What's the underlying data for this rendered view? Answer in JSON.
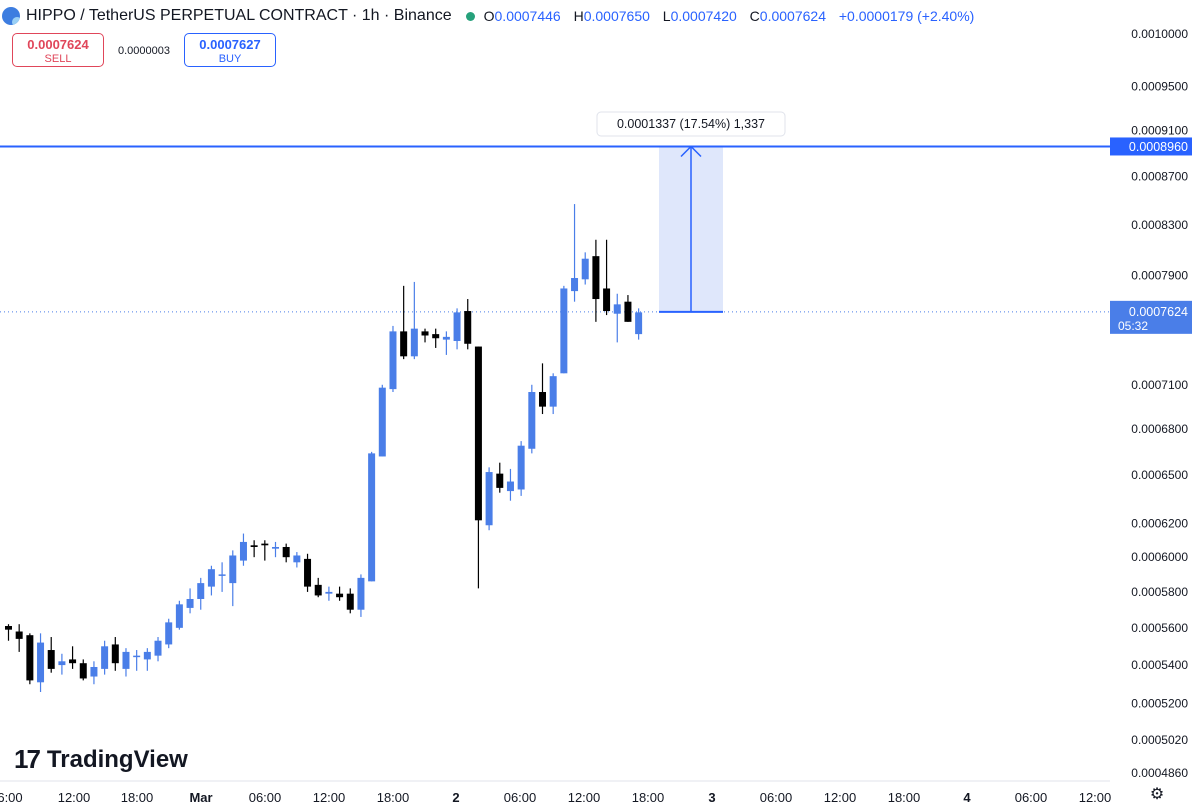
{
  "header": {
    "title": "HIPPO / TetherUS PERPETUAL CONTRACT · 1h · Binance",
    "o_label": "O",
    "o_value": "0.0007446",
    "h_label": "H",
    "h_value": "0.0007650",
    "l_label": "L",
    "l_value": "0.0007420",
    "c_label": "C",
    "c_value": "0.0007624",
    "change": "+0.0000179 (+2.40%)"
  },
  "trade": {
    "sell_price": "0.0007624",
    "sell_label": "SELL",
    "spread": "0.0000003",
    "buy_price": "0.0007627",
    "buy_label": "BUY"
  },
  "brand": {
    "name": "TradingView",
    "mark": "17"
  },
  "icons": {
    "logo": "hippo-coin-icon",
    "status": "market-open-dot-icon",
    "settings": "gear-icon"
  },
  "colors": {
    "up": "#4a7ee8",
    "down": "#000000",
    "accent": "#2962ff",
    "sell": "#e0465a",
    "range_fill": "#dbe4fb"
  },
  "chart_data": {
    "type": "candlestick",
    "y_ticks": [
      "0.0010000",
      "0.0009500",
      "0.0009100",
      "0.0008700",
      "0.0008300",
      "0.0007900",
      "0.0007100",
      "0.0006800",
      "0.0006500",
      "0.0006200",
      "0.0006000",
      "0.0005800",
      "0.0005600",
      "0.0005400",
      "0.0005200",
      "0.0005020",
      "0.0004860"
    ],
    "x_ticks": [
      "6:00",
      "12:00",
      "18:00",
      "Mar",
      "06:00",
      "12:00",
      "18:00",
      "2",
      "06:00",
      "12:00",
      "18:00",
      "3",
      "06:00",
      "12:00",
      "18:00",
      "4",
      "06:00",
      "12:00"
    ],
    "horizontal_line": {
      "value": 0.000896,
      "label": "0.0008960"
    },
    "last_price": {
      "value": 0.0007624,
      "label": "0.0007624",
      "countdown": "05:32"
    },
    "measure": {
      "from": 0.0007624,
      "to": 0.000896,
      "label": "0.0001337 (17.54%) 1,337"
    },
    "candles": [
      {
        "o": 0.000561,
        "h": 0.000562,
        "l": 0.000553,
        "c": 0.000559
      },
      {
        "o": 0.000558,
        "h": 0.000562,
        "l": 0.000547,
        "c": 0.000554
      },
      {
        "o": 0.000556,
        "h": 0.000557,
        "l": 0.00053,
        "c": 0.000532
      },
      {
        "o": 0.000531,
        "h": 0.000557,
        "l": 0.000526,
        "c": 0.000552
      },
      {
        "o": 0.000548,
        "h": 0.000555,
        "l": 0.000536,
        "c": 0.000538
      },
      {
        "o": 0.00054,
        "h": 0.000546,
        "l": 0.000535,
        "c": 0.000542
      },
      {
        "o": 0.000543,
        "h": 0.00055,
        "l": 0.000538,
        "c": 0.000541
      },
      {
        "o": 0.000541,
        "h": 0.000543,
        "l": 0.000532,
        "c": 0.000533
      },
      {
        "o": 0.000534,
        "h": 0.000542,
        "l": 0.00053,
        "c": 0.000539
      },
      {
        "o": 0.000538,
        "h": 0.000553,
        "l": 0.000535,
        "c": 0.00055
      },
      {
        "o": 0.000551,
        "h": 0.000555,
        "l": 0.000537,
        "c": 0.000541
      },
      {
        "o": 0.000538,
        "h": 0.000549,
        "l": 0.000534,
        "c": 0.000547
      },
      {
        "o": 0.000545,
        "h": 0.000548,
        "l": 0.000537,
        "c": 0.000545
      },
      {
        "o": 0.000543,
        "h": 0.000549,
        "l": 0.000537,
        "c": 0.000547
      },
      {
        "o": 0.000545,
        "h": 0.000555,
        "l": 0.000542,
        "c": 0.000553
      },
      {
        "o": 0.000551,
        "h": 0.000565,
        "l": 0.000549,
        "c": 0.000563
      },
      {
        "o": 0.00056,
        "h": 0.000575,
        "l": 0.000559,
        "c": 0.000573
      },
      {
        "o": 0.000571,
        "h": 0.000582,
        "l": 0.000568,
        "c": 0.000576
      },
      {
        "o": 0.000576,
        "h": 0.000588,
        "l": 0.00057,
        "c": 0.000585
      },
      {
        "o": 0.000583,
        "h": 0.000595,
        "l": 0.000578,
        "c": 0.000593
      },
      {
        "o": 0.00059,
        "h": 0.000597,
        "l": 0.00058,
        "c": 0.00059
      },
      {
        "o": 0.000585,
        "h": 0.000604,
        "l": 0.000572,
        "c": 0.000601
      },
      {
        "o": 0.000598,
        "h": 0.000614,
        "l": 0.000595,
        "c": 0.000609
      },
      {
        "o": 0.000607,
        "h": 0.00061,
        "l": 0.0006,
        "c": 0.000606
      },
      {
        "o": 0.000608,
        "h": 0.00061,
        "l": 0.000598,
        "c": 0.000607
      },
      {
        "o": 0.000605,
        "h": 0.000609,
        "l": 0.0006,
        "c": 0.000606
      },
      {
        "o": 0.000606,
        "h": 0.000608,
        "l": 0.000597,
        "c": 0.0006
      },
      {
        "o": 0.000597,
        "h": 0.000603,
        "l": 0.000594,
        "c": 0.000601
      },
      {
        "o": 0.000599,
        "h": 0.000602,
        "l": 0.00058,
        "c": 0.000583
      },
      {
        "o": 0.000584,
        "h": 0.000588,
        "l": 0.000577,
        "c": 0.000578
      },
      {
        "o": 0.000579,
        "h": 0.000583,
        "l": 0.000575,
        "c": 0.00058
      },
      {
        "o": 0.000579,
        "h": 0.000583,
        "l": 0.000575,
        "c": 0.000577
      },
      {
        "o": 0.000579,
        "h": 0.000582,
        "l": 0.000568,
        "c": 0.00057
      },
      {
        "o": 0.00057,
        "h": 0.00059,
        "l": 0.000566,
        "c": 0.000588
      },
      {
        "o": 0.000586,
        "h": 0.000665,
        "l": 0.000586,
        "c": 0.000664
      },
      {
        "o": 0.000662,
        "h": 0.00071,
        "l": 0.000662,
        "c": 0.000708
      },
      {
        "o": 0.000707,
        "h": 0.000752,
        "l": 0.000705,
        "c": 0.000748
      },
      {
        "o": 0.000748,
        "h": 0.000782,
        "l": 0.000728,
        "c": 0.00073
      },
      {
        "o": 0.00073,
        "h": 0.000785,
        "l": 0.000728,
        "c": 0.00075
      },
      {
        "o": 0.000748,
        "h": 0.00075,
        "l": 0.00074,
        "c": 0.000745
      },
      {
        "o": 0.000746,
        "h": 0.00075,
        "l": 0.000736,
        "c": 0.000743
      },
      {
        "o": 0.000742,
        "h": 0.000748,
        "l": 0.000731,
        "c": 0.000744
      },
      {
        "o": 0.000741,
        "h": 0.000765,
        "l": 0.000735,
        "c": 0.000762
      },
      {
        "o": 0.000763,
        "h": 0.000772,
        "l": 0.000735,
        "c": 0.000739
      },
      {
        "o": 0.000737,
        "h": 0.000737,
        "l": 0.000582,
        "c": 0.000622
      },
      {
        "o": 0.000619,
        "h": 0.000655,
        "l": 0.000616,
        "c": 0.000652
      },
      {
        "o": 0.000651,
        "h": 0.000658,
        "l": 0.000639,
        "c": 0.000642
      },
      {
        "o": 0.00064,
        "h": 0.000654,
        "l": 0.000634,
        "c": 0.000646
      },
      {
        "o": 0.000641,
        "h": 0.000672,
        "l": 0.000637,
        "c": 0.000669
      },
      {
        "o": 0.000667,
        "h": 0.00071,
        "l": 0.000664,
        "c": 0.000705
      },
      {
        "o": 0.000705,
        "h": 0.000725,
        "l": 0.00069,
        "c": 0.000695
      },
      {
        "o": 0.000695,
        "h": 0.000718,
        "l": 0.00069,
        "c": 0.000716
      },
      {
        "o": 0.000718,
        "h": 0.000782,
        "l": 0.000718,
        "c": 0.00078
      },
      {
        "o": 0.000778,
        "h": 0.000847,
        "l": 0.00077,
        "c": 0.000788
      },
      {
        "o": 0.000787,
        "h": 0.000808,
        "l": 0.000783,
        "c": 0.000803
      },
      {
        "o": 0.000805,
        "h": 0.000818,
        "l": 0.000755,
        "c": 0.000772
      },
      {
        "o": 0.00078,
        "h": 0.000818,
        "l": 0.00076,
        "c": 0.000763
      },
      {
        "o": 0.000761,
        "h": 0.000776,
        "l": 0.00074,
        "c": 0.000768
      },
      {
        "o": 0.00077,
        "h": 0.000775,
        "l": 0.000755,
        "c": 0.000755
      },
      {
        "o": 0.000746,
        "h": 0.000765,
        "l": 0.000742,
        "c": 0.000762
      }
    ]
  }
}
